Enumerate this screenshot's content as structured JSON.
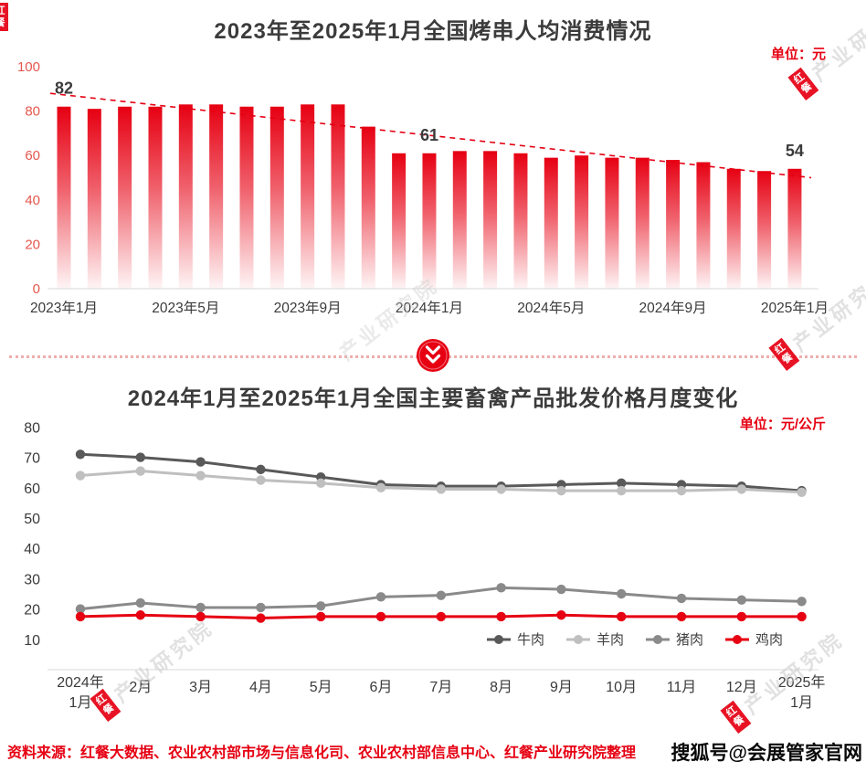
{
  "colors": {
    "brand_red": "#e60012",
    "bar_color": "#e60012",
    "axis_label_red": "#e4574e",
    "text_dark": "#3b3b3b",
    "axis_line": "#d9d9d9",
    "legend_text": "#404040"
  },
  "chart_data": [
    {
      "type": "bar",
      "title": "2023年至2025年1月全国烤串人均消费情况",
      "unit": "单位：元",
      "ylim": [
        0,
        100
      ],
      "y_ticks": [
        0,
        20,
        40,
        60,
        80,
        100
      ],
      "x_tick_labels": [
        "2023年1月",
        "2023年5月",
        "2023年9月",
        "2024年1月",
        "2024年5月",
        "2024年9月",
        "2025年1月"
      ],
      "x_tick_indices": [
        0,
        4,
        8,
        12,
        16,
        20,
        24
      ],
      "values": [
        82,
        81,
        82,
        82,
        83,
        83,
        82,
        82,
        83,
        83,
        73,
        61,
        61,
        62,
        62,
        61,
        59,
        60,
        59,
        59,
        58,
        57,
        54,
        53,
        54
      ],
      "annotations": [
        {
          "index": 0,
          "label": "82"
        },
        {
          "index": 12,
          "label": "61"
        },
        {
          "index": 24,
          "label": "54"
        }
      ],
      "trend_line": {
        "start_value": 88,
        "end_value": 50,
        "style": "dashed",
        "color": "#e60012"
      },
      "grid": false,
      "legend": false
    },
    {
      "type": "line",
      "title": "2024年1月至2025年1月全国主要畜禽产品批发价格月度变化",
      "unit": "单位：元/公斤",
      "ylim": [
        0,
        80
      ],
      "y_ticks": [
        10,
        20,
        30,
        40,
        50,
        60,
        70,
        80
      ],
      "categories": [
        "2024年1月",
        "2月",
        "3月",
        "4月",
        "5月",
        "6月",
        "7月",
        "8月",
        "9月",
        "10月",
        "11月",
        "12月",
        "2025年1月"
      ],
      "series": [
        {
          "name": "牛肉",
          "color": "#595959",
          "values": [
            71,
            70,
            68.5,
            66,
            63.5,
            61,
            60.5,
            60.5,
            61,
            61.5,
            61,
            60.5,
            59
          ]
        },
        {
          "name": "羊肉",
          "color": "#bfbfbf",
          "values": [
            64,
            65.5,
            64,
            62.5,
            61.5,
            60,
            59.5,
            59.5,
            59,
            59,
            59,
            59.5,
            58.5
          ]
        },
        {
          "name": "猪肉",
          "color": "#8a8a8a",
          "values": [
            20,
            22,
            20.5,
            20.5,
            21,
            24,
            24.5,
            27,
            26.5,
            25,
            23.5,
            23,
            22.5
          ]
        },
        {
          "name": "鸡肉",
          "color": "#e60012",
          "values": [
            17.5,
            18,
            17.5,
            17,
            17.5,
            17.5,
            17.5,
            17.5,
            18,
            17.5,
            17.5,
            17.5,
            17.5
          ]
        }
      ],
      "legend_position": "bottom-right",
      "grid": false
    }
  ],
  "divider": {
    "icon": "double-chevron-down"
  },
  "footer": {
    "source": "资料来源：红餐大数据、农业农村部市场与信息化司、农业农村部信息中心、红餐产业研究院整理"
  },
  "watermarks": {
    "sohu": "搜狐号@会展管家官网",
    "brand_logo": "红餐",
    "brand_text": "产业研究院"
  }
}
